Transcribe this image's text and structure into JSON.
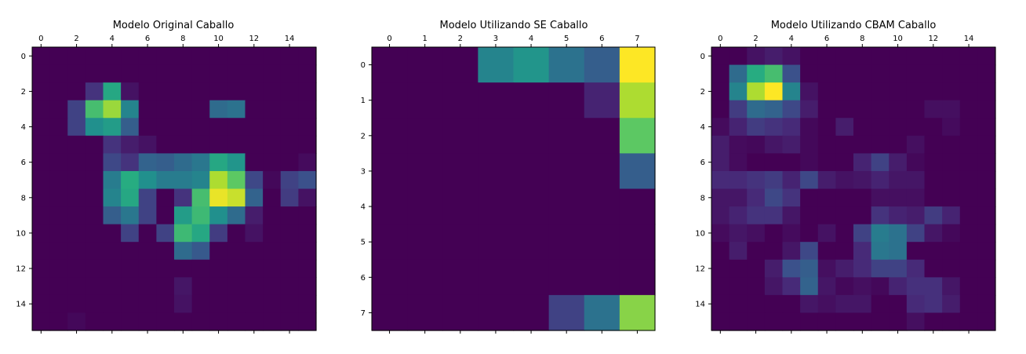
{
  "colormap": "viridis",
  "chart_data": [
    {
      "type": "heatmap",
      "title": "Modelo Original Caballo",
      "rows": 16,
      "cols": 16,
      "x_ticks": [
        0,
        2,
        4,
        6,
        8,
        10,
        12,
        14
      ],
      "y_ticks": [
        0,
        2,
        4,
        6,
        8,
        10,
        12,
        14
      ],
      "x_axis_position": "top",
      "value_range": [
        0,
        1
      ],
      "values": [
        [
          0,
          0,
          0,
          0,
          0,
          0,
          0,
          0,
          0,
          0,
          0,
          0,
          0,
          0,
          0,
          0
        ],
        [
          0,
          0,
          0,
          0,
          0,
          0,
          0,
          0,
          0,
          0,
          0,
          0,
          0,
          0,
          0,
          0
        ],
        [
          0,
          0,
          0,
          0.15,
          0.6,
          0.05,
          0,
          0,
          0,
          0,
          0,
          0,
          0,
          0,
          0,
          0
        ],
        [
          0,
          0,
          0.2,
          0.7,
          0.85,
          0.45,
          0,
          0,
          0,
          0,
          0.35,
          0.38,
          0,
          0,
          0,
          0
        ],
        [
          0,
          0,
          0.2,
          0.5,
          0.55,
          0.3,
          0,
          0,
          0,
          0,
          0,
          0,
          0,
          0,
          0,
          0
        ],
        [
          0,
          0,
          0,
          0,
          0.15,
          0.08,
          0.05,
          0,
          0,
          0,
          0,
          0,
          0,
          0,
          0,
          0
        ],
        [
          0,
          0,
          0,
          0,
          0.22,
          0.15,
          0.32,
          0.3,
          0.35,
          0.4,
          0.6,
          0.52,
          0,
          0,
          0,
          0.03
        ],
        [
          0,
          0,
          0,
          0,
          0.42,
          0.62,
          0.5,
          0.42,
          0.42,
          0.45,
          0.88,
          0.75,
          0.22,
          0.02,
          0.2,
          0.25
        ],
        [
          0,
          0,
          0,
          0,
          0.45,
          0.6,
          0.2,
          0,
          0.15,
          0.7,
          0.97,
          0.92,
          0.32,
          0,
          0.18,
          0.05
        ],
        [
          0,
          0,
          0,
          0,
          0.3,
          0.4,
          0.2,
          0,
          0.55,
          0.68,
          0.5,
          0.35,
          0.08,
          0,
          0,
          0
        ],
        [
          0,
          0,
          0,
          0,
          0,
          0.2,
          0,
          0.2,
          0.68,
          0.6,
          0.18,
          0,
          0.05,
          0,
          0,
          0
        ],
        [
          0,
          0,
          0,
          0,
          0,
          0,
          0,
          0,
          0.35,
          0.28,
          0,
          0,
          0,
          0,
          0,
          0
        ],
        [
          0,
          0,
          0,
          0,
          0,
          0,
          0,
          0,
          0,
          0,
          0,
          0,
          0,
          0,
          0,
          0
        ],
        [
          0,
          0,
          0,
          0,
          0,
          0,
          0,
          0,
          0.06,
          0,
          0,
          0,
          0,
          0,
          0,
          0
        ],
        [
          0,
          0,
          0,
          0,
          0,
          0,
          0,
          0,
          0.05,
          0,
          0,
          0,
          0,
          0,
          0,
          0
        ],
        [
          0,
          0,
          0.02,
          0,
          0,
          0,
          0,
          0,
          0,
          0,
          0,
          0,
          0,
          0,
          0,
          0
        ]
      ]
    },
    {
      "type": "heatmap",
      "title": "Modelo Utilizando SE Caballo",
      "rows": 8,
      "cols": 8,
      "x_ticks": [
        0,
        1,
        2,
        3,
        4,
        5,
        6,
        7
      ],
      "y_ticks": [
        0,
        1,
        2,
        3,
        4,
        5,
        6,
        7
      ],
      "x_axis_position": "top",
      "value_range": [
        0,
        1
      ],
      "values": [
        [
          0,
          0,
          0,
          0.45,
          0.52,
          0.38,
          0.3,
          1.0
        ],
        [
          0,
          0,
          0,
          0,
          0,
          0,
          0.1,
          0.88
        ],
        [
          0,
          0,
          0,
          0,
          0,
          0,
          0,
          0.75
        ],
        [
          0,
          0,
          0,
          0,
          0,
          0,
          0,
          0.3
        ],
        [
          0,
          0,
          0,
          0,
          0,
          0,
          0,
          0
        ],
        [
          0,
          0,
          0,
          0,
          0,
          0,
          0,
          0
        ],
        [
          0,
          0,
          0,
          0,
          0,
          0,
          0,
          0
        ],
        [
          0,
          0,
          0,
          0,
          0,
          0.2,
          0.38,
          0.82
        ]
      ]
    },
    {
      "type": "heatmap",
      "title": "Modelo Utilizando CBAM Caballo",
      "rows": 16,
      "cols": 16,
      "x_ticks": [
        0,
        2,
        4,
        6,
        8,
        10,
        12,
        14
      ],
      "y_ticks": [
        0,
        2,
        4,
        6,
        8,
        10,
        12,
        14
      ],
      "x_axis_position": "top",
      "value_range": [
        0,
        1
      ],
      "values": [
        [
          0,
          0,
          0.05,
          0.08,
          0.05,
          0,
          0,
          0,
          0,
          0,
          0,
          0,
          0,
          0,
          0,
          0
        ],
        [
          0,
          0.35,
          0.62,
          0.7,
          0.25,
          0,
          0,
          0,
          0,
          0,
          0,
          0,
          0,
          0,
          0,
          0
        ],
        [
          0,
          0.45,
          0.88,
          1.0,
          0.45,
          0.05,
          0,
          0,
          0,
          0,
          0,
          0,
          0,
          0,
          0,
          0
        ],
        [
          0,
          0.18,
          0.35,
          0.32,
          0.22,
          0.08,
          0,
          0,
          0,
          0,
          0,
          0,
          0.04,
          0.04,
          0,
          0
        ],
        [
          0.03,
          0.1,
          0.18,
          0.15,
          0.12,
          0.02,
          0,
          0.08,
          0,
          0,
          0,
          0,
          0,
          0.03,
          0,
          0
        ],
        [
          0.08,
          0.03,
          0.02,
          0.06,
          0.08,
          0.02,
          0,
          0,
          0,
          0,
          0,
          0.04,
          0,
          0,
          0,
          0
        ],
        [
          0.08,
          0.03,
          0,
          0,
          0,
          0.02,
          0,
          0,
          0.1,
          0.2,
          0.08,
          0.02,
          0,
          0,
          0,
          0
        ],
        [
          0.12,
          0.12,
          0.15,
          0.18,
          0.1,
          0.22,
          0.08,
          0.05,
          0.06,
          0.1,
          0.06,
          0.06,
          0,
          0,
          0,
          0
        ],
        [
          0.06,
          0.06,
          0.12,
          0.22,
          0.15,
          0,
          0,
          0,
          0,
          0.04,
          0.04,
          0.04,
          0,
          0,
          0,
          0
        ],
        [
          0.06,
          0.1,
          0.15,
          0.15,
          0.06,
          0,
          0,
          0,
          0,
          0.15,
          0.1,
          0.08,
          0.18,
          0.1,
          0,
          0
        ],
        [
          0.03,
          0.06,
          0.04,
          0,
          0.03,
          0,
          0.05,
          0,
          0.2,
          0.42,
          0.38,
          0.2,
          0.06,
          0.02,
          0,
          0
        ],
        [
          0,
          0.08,
          0,
          0,
          0.06,
          0.22,
          0,
          0,
          0.12,
          0.4,
          0.38,
          0,
          0,
          0,
          0,
          0
        ],
        [
          0,
          0,
          0,
          0.08,
          0.25,
          0.3,
          0.04,
          0.08,
          0.12,
          0.2,
          0.2,
          0.12,
          0,
          0,
          0,
          0
        ],
        [
          0,
          0,
          0,
          0.06,
          0.12,
          0.32,
          0.06,
          0.02,
          0.04,
          0.02,
          0.1,
          0.14,
          0.14,
          0.06,
          0,
          0
        ],
        [
          0,
          0,
          0,
          0,
          0,
          0.06,
          0.04,
          0.06,
          0.06,
          0,
          0,
          0.12,
          0.14,
          0.08,
          0,
          0
        ],
        [
          0,
          0,
          0,
          0,
          0,
          0,
          0,
          0,
          0,
          0,
          0,
          0.04,
          0,
          0,
          0,
          0
        ]
      ]
    }
  ]
}
